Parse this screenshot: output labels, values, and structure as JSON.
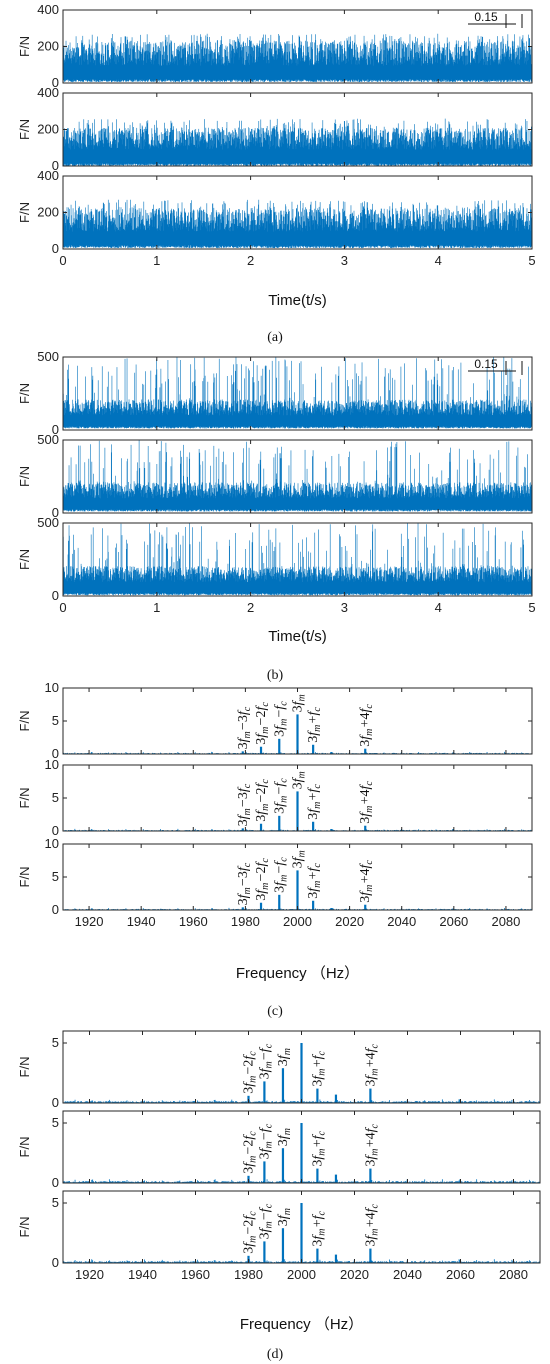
{
  "chart_data": [
    {
      "id": "a",
      "type": "line",
      "caption": "(a)",
      "xlabel": "Time(t/s)",
      "ylabel": "F/N",
      "xlim": [
        0,
        5
      ],
      "ylim": [
        0,
        400
      ],
      "xticks": [
        0,
        1,
        2,
        3,
        4,
        5
      ],
      "yticks": [
        0,
        200,
        400
      ],
      "scale_label": "0.15",
      "color": "#0072BD",
      "series": [
        {
          "mean": 95,
          "amp": 140,
          "peak": 270,
          "spike_prob": 0
        },
        {
          "mean": 90,
          "amp": 120,
          "peak": 260,
          "spike_prob": 0
        },
        {
          "mean": 95,
          "amp": 130,
          "peak": 270,
          "spike_prob": 0
        }
      ]
    },
    {
      "id": "b",
      "type": "line",
      "caption": "(b)",
      "xlabel": "Time(t/s)",
      "ylabel": "F/N",
      "xlim": [
        0,
        5
      ],
      "ylim": [
        0,
        500
      ],
      "xticks": [
        0,
        1,
        2,
        3,
        4,
        5
      ],
      "yticks": [
        0,
        500
      ],
      "scale_label": "0.15",
      "color": "#0072BD",
      "series": [
        {
          "mean": 100,
          "amp": 110,
          "peak": 500,
          "spike_prob": 0.03
        },
        {
          "mean": 100,
          "amp": 110,
          "peak": 500,
          "spike_prob": 0.025
        },
        {
          "mean": 95,
          "amp": 110,
          "peak": 500,
          "spike_prob": 0.02
        }
      ]
    },
    {
      "id": "c",
      "type": "bar",
      "caption": "(c)",
      "xlabel": "Frequency （Hz）",
      "ylabel": "F/N",
      "xlim": [
        1910,
        2090
      ],
      "ylim": [
        0,
        10
      ],
      "xticks": [
        1920,
        1940,
        1960,
        1980,
        2000,
        2020,
        2040,
        2060,
        2080
      ],
      "yticks": [
        0,
        5,
        10
      ],
      "color": "#0072BD",
      "peaks": [
        {
          "f": 1979,
          "v": 0.4,
          "label": "3f_m-3f_c"
        },
        {
          "f": 1986,
          "v": 1.1,
          "label": "3f_m-2f_c"
        },
        {
          "f": 1993,
          "v": 2.3,
          "label": "3f_m-f_c"
        },
        {
          "f": 2000,
          "v": 6.0,
          "label": "3f_m"
        },
        {
          "f": 2006,
          "v": 1.4,
          "label": "3f_m+f_c"
        },
        {
          "f": 2013,
          "v": 0.3,
          "label": ""
        },
        {
          "f": 2026,
          "v": 0.8,
          "label": "3f_m+4f_c"
        }
      ]
    },
    {
      "id": "d",
      "type": "bar",
      "caption": "(d)",
      "xlabel": "Frequency （Hz）",
      "ylabel": "F/N",
      "xlim": [
        1910,
        2090
      ],
      "ylim": [
        0,
        6
      ],
      "xticks": [
        1920,
        1940,
        1960,
        1980,
        2000,
        2020,
        2040,
        2060,
        2080
      ],
      "yticks": [
        0,
        5
      ],
      "color": "#0072BD",
      "peaks": [
        {
          "f": 1980,
          "v": 0.6,
          "label": "3f_m-2f_c"
        },
        {
          "f": 1986,
          "v": 1.8,
          "label": "3f_m-f_c"
        },
        {
          "f": 1993,
          "v": 2.9,
          "label": "3f_m"
        },
        {
          "f": 2000,
          "v": 5.0,
          "label": ""
        },
        {
          "f": 2006,
          "v": 1.2,
          "label": "3f_m+f_c"
        },
        {
          "f": 2013,
          "v": 0.7,
          "label": ""
        },
        {
          "f": 2026,
          "v": 1.2,
          "label": "3f_m+4f_c"
        }
      ]
    }
  ]
}
